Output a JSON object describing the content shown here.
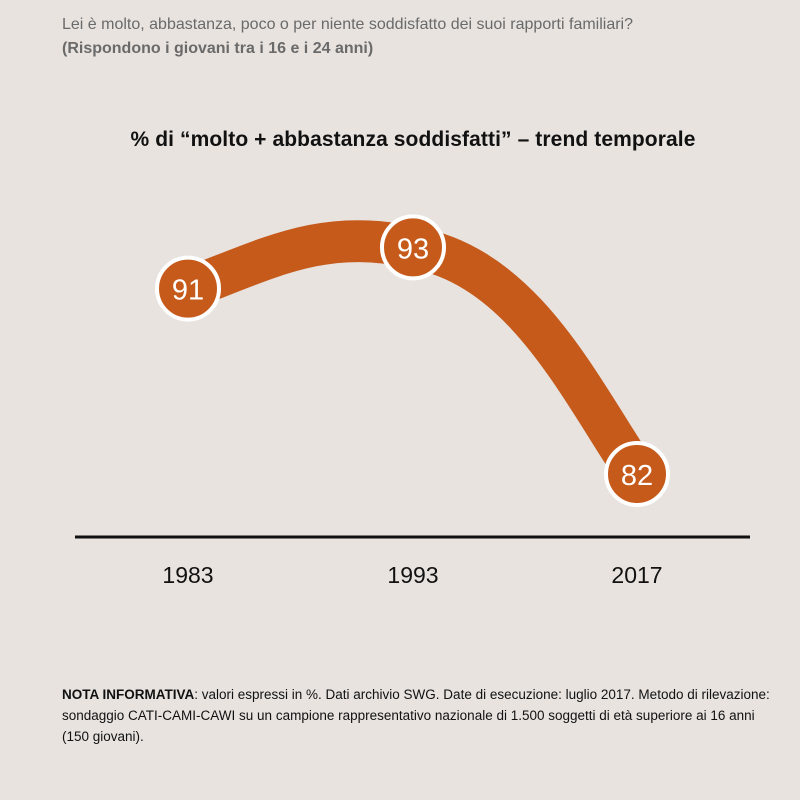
{
  "header": {
    "question": "Lei è molto, abbastanza, poco o per niente soddisfatto dei suoi rapporti familiari?",
    "subtitle": "(Rispondono i giovani tra i 16 e i 24 anni)"
  },
  "chart_data": {
    "type": "line",
    "title": "% di “molto + abbastanza soddisfatti” – trend temporale",
    "categories": [
      "1983",
      "1993",
      "2017"
    ],
    "values": [
      91,
      93,
      82
    ],
    "xlabel": "",
    "ylabel": "",
    "grid": false,
    "colors": {
      "line": "#c65a1b",
      "marker_fill": "#c65a1b",
      "marker_stroke": "#ffffff",
      "axis": "#111111",
      "background": "#e8e3df"
    }
  },
  "note": {
    "label": "NOTA INFORMATIVA",
    "text": ": valori espressi in %. Dati archivio SWG. Date di esecuzione: luglio 2017. Metodo di rilevazione: sondaggio CATI-CAMI-CAWI su un campione rappresentativo nazionale di 1.500 soggetti di età superiore ai 16 anni (150 giovani)."
  }
}
